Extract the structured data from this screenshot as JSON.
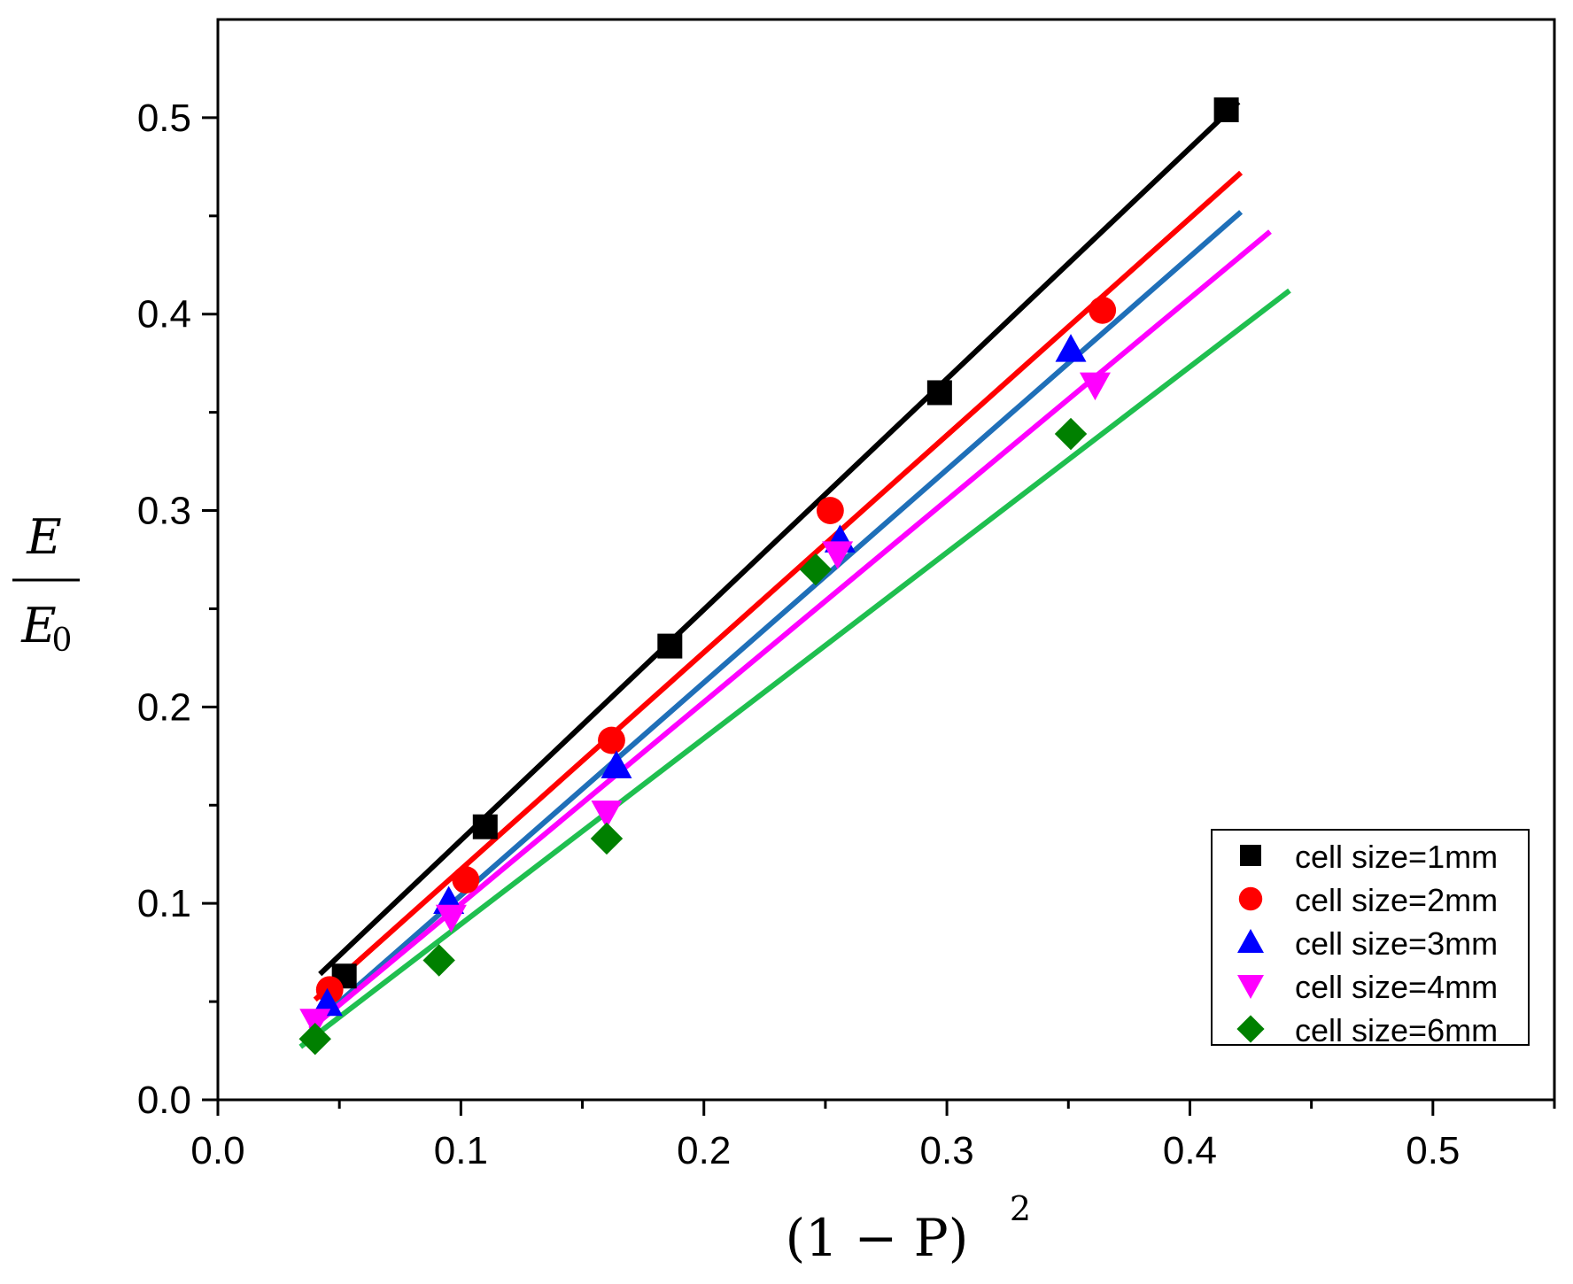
{
  "chart_data": {
    "type": "scatter",
    "xlabel": "(1 − P)",
    "xlabel_sup": "2",
    "ylabel_num": "E",
    "ylabel_den": "E",
    "ylabel_den_sub": "0",
    "xlim": [
      0.0,
      0.55
    ],
    "ylim": [
      0.0,
      0.55
    ],
    "x_ticks": [
      "0.0",
      "0.1",
      "0.2",
      "0.3",
      "0.4",
      "0.5"
    ],
    "y_ticks": [
      "0.0",
      "0.1",
      "0.2",
      "0.3",
      "0.4",
      "0.5"
    ],
    "x_tick_values": [
      0.0,
      0.1,
      0.2,
      0.3,
      0.4,
      0.5
    ],
    "y_tick_values": [
      0.0,
      0.1,
      0.2,
      0.3,
      0.4,
      0.5
    ],
    "grid": false,
    "legend_position": "bottom-right",
    "series": [
      {
        "name": "cell size=1mm",
        "marker": "square",
        "marker_color": "#000000",
        "line_color": "#000000",
        "points": [
          [
            0.052,
            0.063
          ],
          [
            0.11,
            0.139
          ],
          [
            0.186,
            0.231
          ],
          [
            0.297,
            0.36
          ],
          [
            0.415,
            0.504
          ]
        ],
        "fit": [
          [
            0.042,
            0.064
          ],
          [
            0.42,
            0.508
          ]
        ]
      },
      {
        "name": "cell size=2mm",
        "marker": "circle",
        "marker_color": "#ff0000",
        "line_color": "#ff0000",
        "points": [
          [
            0.046,
            0.056
          ],
          [
            0.102,
            0.112
          ],
          [
            0.162,
            0.183
          ],
          [
            0.252,
            0.3
          ],
          [
            0.364,
            0.402
          ]
        ],
        "fit": [
          [
            0.04,
            0.051
          ],
          [
            0.421,
            0.472
          ]
        ]
      },
      {
        "name": "cell size=3mm",
        "marker": "triangle-up",
        "marker_color": "#0000ff",
        "line_color": "#1f6fb8",
        "points": [
          [
            0.045,
            0.049
          ],
          [
            0.095,
            0.101
          ],
          [
            0.164,
            0.17
          ],
          [
            0.256,
            0.285
          ],
          [
            0.351,
            0.382
          ]
        ],
        "fit": [
          [
            0.04,
            0.039
          ],
          [
            0.421,
            0.452
          ]
        ]
      },
      {
        "name": "cell size=4mm",
        "marker": "triangle-down",
        "marker_color": "#ff00ff",
        "line_color": "#ff00ff",
        "points": [
          [
            0.04,
            0.04
          ],
          [
            0.096,
            0.093
          ],
          [
            0.16,
            0.146
          ],
          [
            0.255,
            0.278
          ],
          [
            0.361,
            0.364
          ]
        ],
        "fit": [
          [
            0.038,
            0.036
          ],
          [
            0.433,
            0.442
          ]
        ]
      },
      {
        "name": "cell size=6mm",
        "marker": "diamond",
        "marker_color": "#008000",
        "line_color": "#1fbf4f",
        "points": [
          [
            0.04,
            0.031
          ],
          [
            0.091,
            0.071
          ],
          [
            0.16,
            0.133
          ],
          [
            0.246,
            0.27
          ],
          [
            0.351,
            0.339
          ]
        ],
        "fit": [
          [
            0.034,
            0.027
          ],
          [
            0.441,
            0.412
          ]
        ]
      }
    ]
  }
}
